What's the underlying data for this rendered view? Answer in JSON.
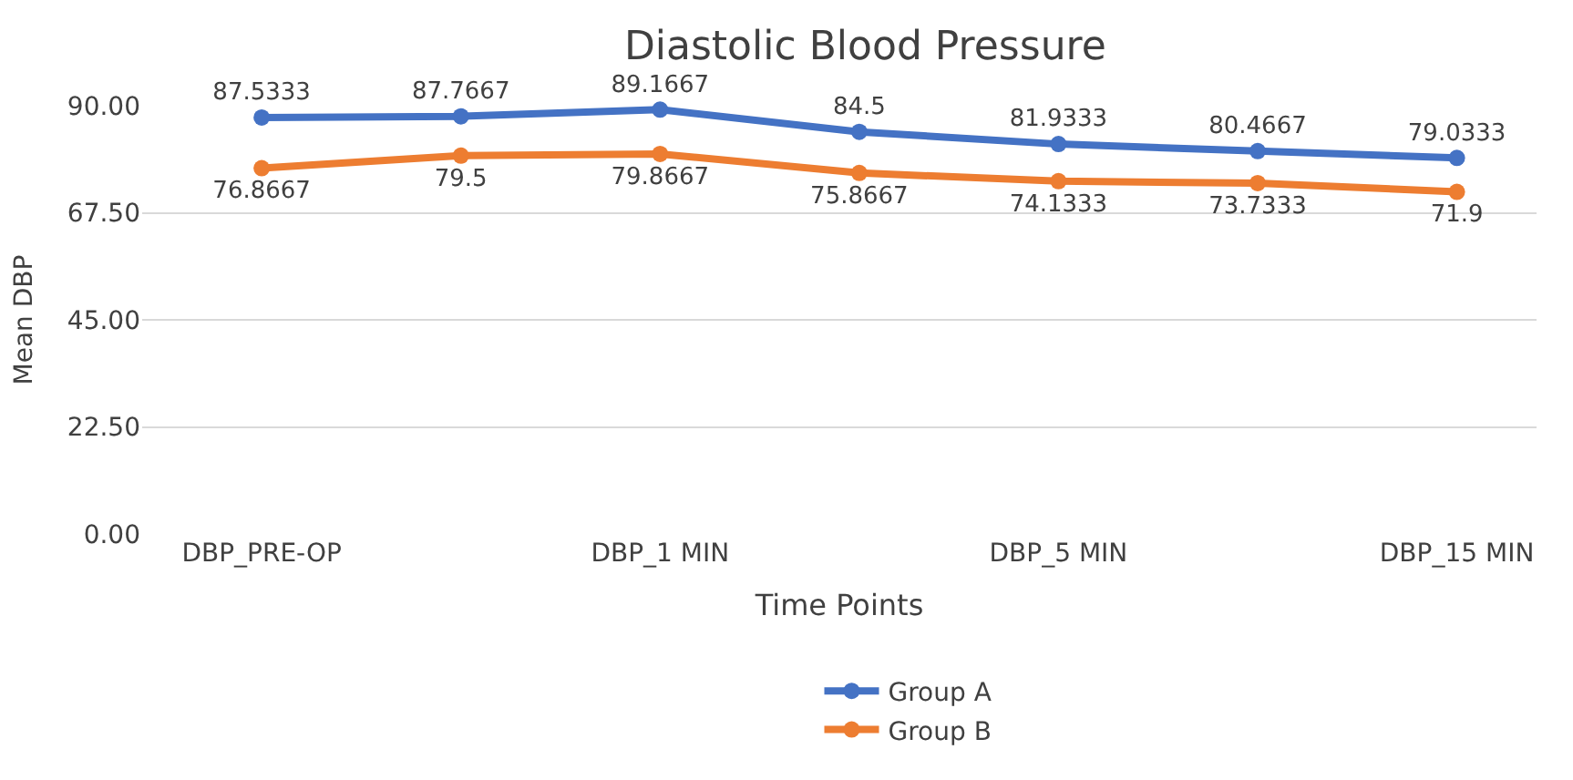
{
  "chart_data": {
    "type": "line",
    "title": "Diastolic Blood Pressure",
    "xlabel": "Time Points",
    "ylabel": "Mean DBP",
    "categories": [
      "DBP_PRE-OP",
      null,
      "DBP_1 MIN",
      null,
      "DBP_5 MIN",
      null,
      "DBP_15 MIN"
    ],
    "series": [
      {
        "name": "Group A",
        "color": "#4472c4",
        "values": [
          87.5333,
          87.7667,
          89.1667,
          84.5,
          81.9333,
          80.4667,
          79.0333
        ]
      },
      {
        "name": "Group B",
        "color": "#ed7d31",
        "values": [
          76.8667,
          79.5,
          79.8667,
          75.8667,
          74.1333,
          73.7333,
          71.9
        ]
      }
    ],
    "ylim": [
      0,
      90
    ],
    "yticks": [
      {
        "value": 0,
        "label": "0.00"
      },
      {
        "value": 22.5,
        "label": "22.50"
      },
      {
        "value": 45,
        "label": "45.00"
      },
      {
        "value": 67.5,
        "label": "67.50"
      },
      {
        "value": 90,
        "label": "90.00"
      }
    ],
    "grid": "y",
    "legend": "bottom",
    "marker": "circle",
    "line_style": "solid",
    "data_labels": true
  }
}
